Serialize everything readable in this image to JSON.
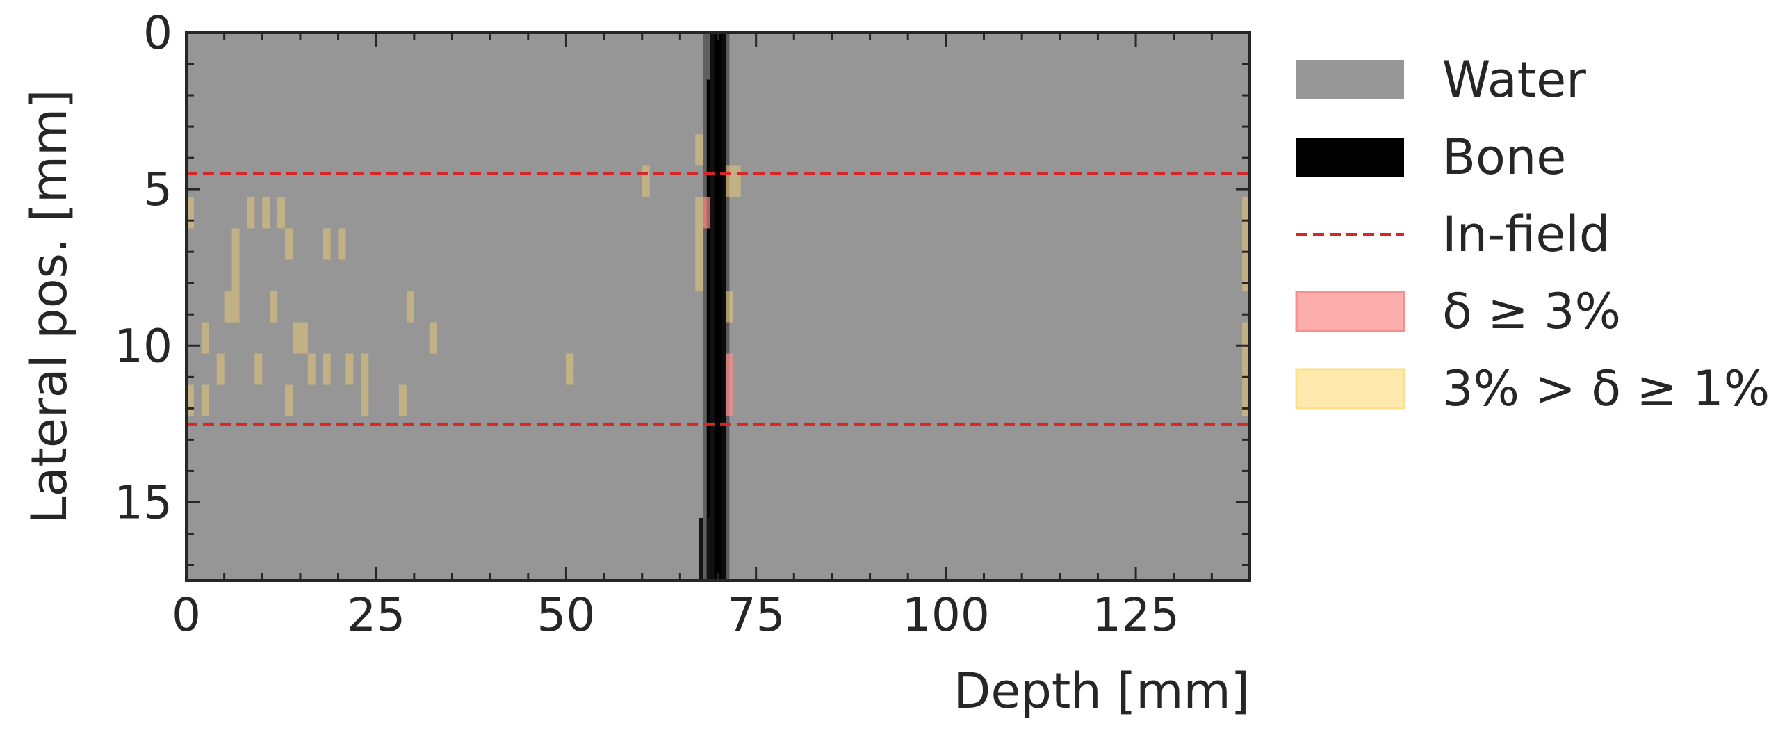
{
  "chart_data": {
    "type": "heatmap",
    "xlabel": "Depth [mm]",
    "ylabel": "Lateral pos. [mm]",
    "xlim": [
      0,
      140
    ],
    "ylim": [
      17.5,
      0
    ],
    "xticks": [
      0,
      25,
      50,
      75,
      100,
      125
    ],
    "yticks": [
      0,
      5,
      10,
      15
    ],
    "xtick_labels": [
      "0",
      "25",
      "50",
      "75",
      "100",
      "125"
    ],
    "ytick_labels": [
      "0",
      "5",
      "10",
      "15"
    ],
    "grid": false,
    "legend_position": "outside right",
    "colors": {
      "water": "#969696",
      "bone": "#000000",
      "in_field": "#d62728",
      "high_delta": "#ff8c8c",
      "low_delta": "#e6c878",
      "axes": "#262626"
    },
    "materials": [
      {
        "name": "Water",
        "x_range": [
          0,
          140
        ],
        "color": "#969696"
      },
      {
        "name": "Bone",
        "x_range": [
          68.5,
          71
        ],
        "color": "#000000"
      }
    ],
    "in_field_lines": [
      4.5,
      12.5
    ],
    "delta_ge_3pct_cells": [
      {
        "x": 68.5,
        "y": 5.5
      },
      {
        "x": 68.5,
        "y": 6.0
      },
      {
        "x": 71.5,
        "y": 10.5
      },
      {
        "x": 71.5,
        "y": 11.0
      },
      {
        "x": 71.5,
        "y": 11.5
      },
      {
        "x": 71.5,
        "y": 12.0
      }
    ],
    "delta_1_to_3pct_cells": [
      {
        "x": 0.5,
        "y": 5.5
      },
      {
        "x": 0.5,
        "y": 6.0
      },
      {
        "x": 0.5,
        "y": 11.5
      },
      {
        "x": 0.5,
        "y": 12.0
      },
      {
        "x": 2.5,
        "y": 9.5
      },
      {
        "x": 2.5,
        "y": 10.0
      },
      {
        "x": 2.5,
        "y": 11.5
      },
      {
        "x": 2.5,
        "y": 12.0
      },
      {
        "x": 4.5,
        "y": 10.5
      },
      {
        "x": 4.5,
        "y": 11.0
      },
      {
        "x": 5.5,
        "y": 8.5
      },
      {
        "x": 5.5,
        "y": 9.0
      },
      {
        "x": 6.5,
        "y": 6.5
      },
      {
        "x": 6.5,
        "y": 7.0
      },
      {
        "x": 6.5,
        "y": 7.5
      },
      {
        "x": 6.5,
        "y": 8.0
      },
      {
        "x": 6.5,
        "y": 8.5
      },
      {
        "x": 6.5,
        "y": 9.0
      },
      {
        "x": 8.5,
        "y": 5.5
      },
      {
        "x": 8.5,
        "y": 6.0
      },
      {
        "x": 9.5,
        "y": 10.5
      },
      {
        "x": 9.5,
        "y": 11.0
      },
      {
        "x": 10.5,
        "y": 5.5
      },
      {
        "x": 10.5,
        "y": 6.0
      },
      {
        "x": 11.5,
        "y": 8.5
      },
      {
        "x": 11.5,
        "y": 9.0
      },
      {
        "x": 12.5,
        "y": 5.5
      },
      {
        "x": 12.5,
        "y": 6.0
      },
      {
        "x": 13.5,
        "y": 6.5
      },
      {
        "x": 13.5,
        "y": 7.0
      },
      {
        "x": 13.5,
        "y": 11.5
      },
      {
        "x": 13.5,
        "y": 12.0
      },
      {
        "x": 14.5,
        "y": 9.5
      },
      {
        "x": 14.5,
        "y": 10.0
      },
      {
        "x": 15.5,
        "y": 9.5
      },
      {
        "x": 15.5,
        "y": 10.0
      },
      {
        "x": 16.5,
        "y": 10.5
      },
      {
        "x": 16.5,
        "y": 11.0
      },
      {
        "x": 18.5,
        "y": 6.5
      },
      {
        "x": 18.5,
        "y": 7.0
      },
      {
        "x": 18.5,
        "y": 10.5
      },
      {
        "x": 18.5,
        "y": 11.0
      },
      {
        "x": 20.5,
        "y": 6.5
      },
      {
        "x": 20.5,
        "y": 7.0
      },
      {
        "x": 21.5,
        "y": 10.5
      },
      {
        "x": 21.5,
        "y": 11.0
      },
      {
        "x": 23.5,
        "y": 10.5
      },
      {
        "x": 23.5,
        "y": 11.0
      },
      {
        "x": 23.5,
        "y": 11.5
      },
      {
        "x": 23.5,
        "y": 12.0
      },
      {
        "x": 28.5,
        "y": 11.5
      },
      {
        "x": 28.5,
        "y": 12.0
      },
      {
        "x": 29.5,
        "y": 8.5
      },
      {
        "x": 29.5,
        "y": 9.0
      },
      {
        "x": 32.5,
        "y": 9.5
      },
      {
        "x": 32.5,
        "y": 10.0
      },
      {
        "x": 50.5,
        "y": 10.5
      },
      {
        "x": 50.5,
        "y": 11.0
      },
      {
        "x": 60.5,
        "y": 4.5
      },
      {
        "x": 60.5,
        "y": 5.0
      },
      {
        "x": 67.5,
        "y": 3.5
      },
      {
        "x": 67.5,
        "y": 4.0
      },
      {
        "x": 67.5,
        "y": 5.5
      },
      {
        "x": 67.5,
        "y": 6.0
      },
      {
        "x": 67.5,
        "y": 6.5
      },
      {
        "x": 67.5,
        "y": 7.0
      },
      {
        "x": 67.5,
        "y": 7.5
      },
      {
        "x": 67.5,
        "y": 8.0
      },
      {
        "x": 71.5,
        "y": 4.5
      },
      {
        "x": 71.5,
        "y": 5.0
      },
      {
        "x": 71.5,
        "y": 8.5
      },
      {
        "x": 71.5,
        "y": 9.0
      },
      {
        "x": 72.5,
        "y": 4.5
      },
      {
        "x": 72.5,
        "y": 5.0
      },
      {
        "x": 139.5,
        "y": 5.5
      },
      {
        "x": 139.5,
        "y": 6.0
      },
      {
        "x": 139.5,
        "y": 6.5
      },
      {
        "x": 139.5,
        "y": 7.0
      },
      {
        "x": 139.5,
        "y": 7.5
      },
      {
        "x": 139.5,
        "y": 8.0
      },
      {
        "x": 139.5,
        "y": 9.5
      },
      {
        "x": 139.5,
        "y": 10.0
      },
      {
        "x": 139.5,
        "y": 10.5
      },
      {
        "x": 139.5,
        "y": 11.0
      },
      {
        "x": 139.5,
        "y": 11.5
      },
      {
        "x": 139.5,
        "y": 12.0
      }
    ],
    "legend": [
      {
        "label": "Water",
        "style": "patch",
        "color": "#969696"
      },
      {
        "label": "Bone",
        "style": "patch",
        "color": "#000000"
      },
      {
        "label": "In-field",
        "style": "dashed-line",
        "color": "#d62728"
      },
      {
        "label": "δ ≥ 3%",
        "style": "patch",
        "color": "#ff8c8c"
      },
      {
        "label": "3% > δ ≥ 1%",
        "style": "patch",
        "color": "#ffe08a"
      }
    ]
  }
}
